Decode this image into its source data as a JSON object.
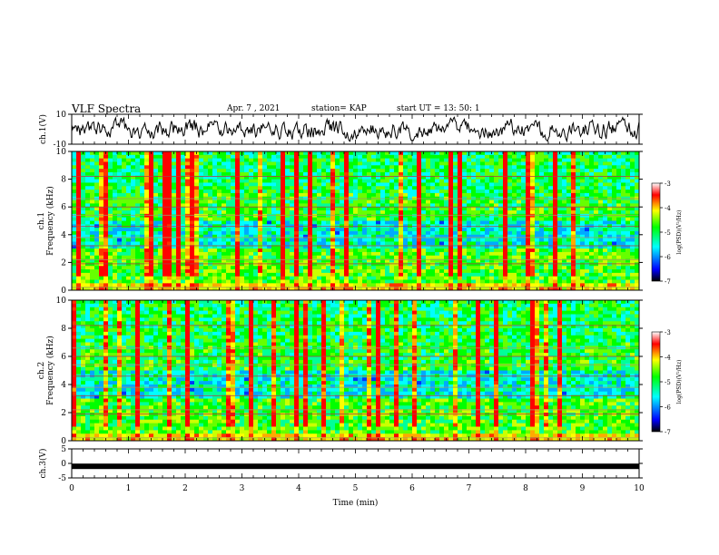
{
  "header": {
    "title": "VLF Spectra",
    "date": "Apr. 7  , 2021",
    "station": "station= KAP",
    "start": "start  UT  =   13: 50: 1"
  },
  "chart_data": [
    {
      "type": "line",
      "name": "ch1-waveform",
      "ylabel": "ch.1(V)",
      "ylim": [
        -10,
        10
      ],
      "yticks": [
        "10",
        "-10"
      ],
      "xlim": [
        0,
        10
      ],
      "note": "noisy waveform, roughly between -5 and 5 V"
    },
    {
      "type": "heatmap",
      "name": "ch1-spectrogram",
      "ylabel": "ch.1\nFrequency (kHz)",
      "ylim": [
        0,
        10
      ],
      "yticks": [
        "0",
        "2",
        "4",
        "6",
        "8",
        "10"
      ],
      "xlim": [
        0,
        10
      ],
      "colorbar": {
        "label": "log(PSD)(V²/Hz)",
        "ticks": [
          "-3",
          "-4",
          "-5",
          "-6",
          "-7"
        ],
        "range": [
          -7,
          -3
        ]
      }
    },
    {
      "type": "heatmap",
      "name": "ch2-spectrogram",
      "ylabel": "ch.2\nFrequency (kHz)",
      "ylim": [
        0,
        10
      ],
      "yticks": [
        "0",
        "2",
        "4",
        "6",
        "8",
        "10"
      ],
      "xlim": [
        0,
        10
      ],
      "colorbar": {
        "label": "log(PSD)(V²/Hz)",
        "ticks": [
          "-3",
          "-4",
          "-5",
          "-6",
          "-7"
        ],
        "range": [
          -7,
          -3
        ]
      }
    },
    {
      "type": "line",
      "name": "ch3-signal",
      "ylabel": "ch.3(V)",
      "ylim": [
        -5,
        5
      ],
      "yticks": [
        "5",
        "0",
        "-5"
      ],
      "xlim": [
        0,
        10
      ],
      "note": "thick flat band near -1 V"
    }
  ],
  "xaxis": {
    "label": "Time  (min)",
    "ticks": [
      "0",
      "1",
      "2",
      "3",
      "4",
      "5",
      "6",
      "7",
      "8",
      "9",
      "10"
    ]
  },
  "colors": {
    "spectrum_stops": [
      "#000000",
      "#0000ff",
      "#00ffff",
      "#00ff00",
      "#ffff00",
      "#ff0000",
      "#ffffff"
    ]
  }
}
